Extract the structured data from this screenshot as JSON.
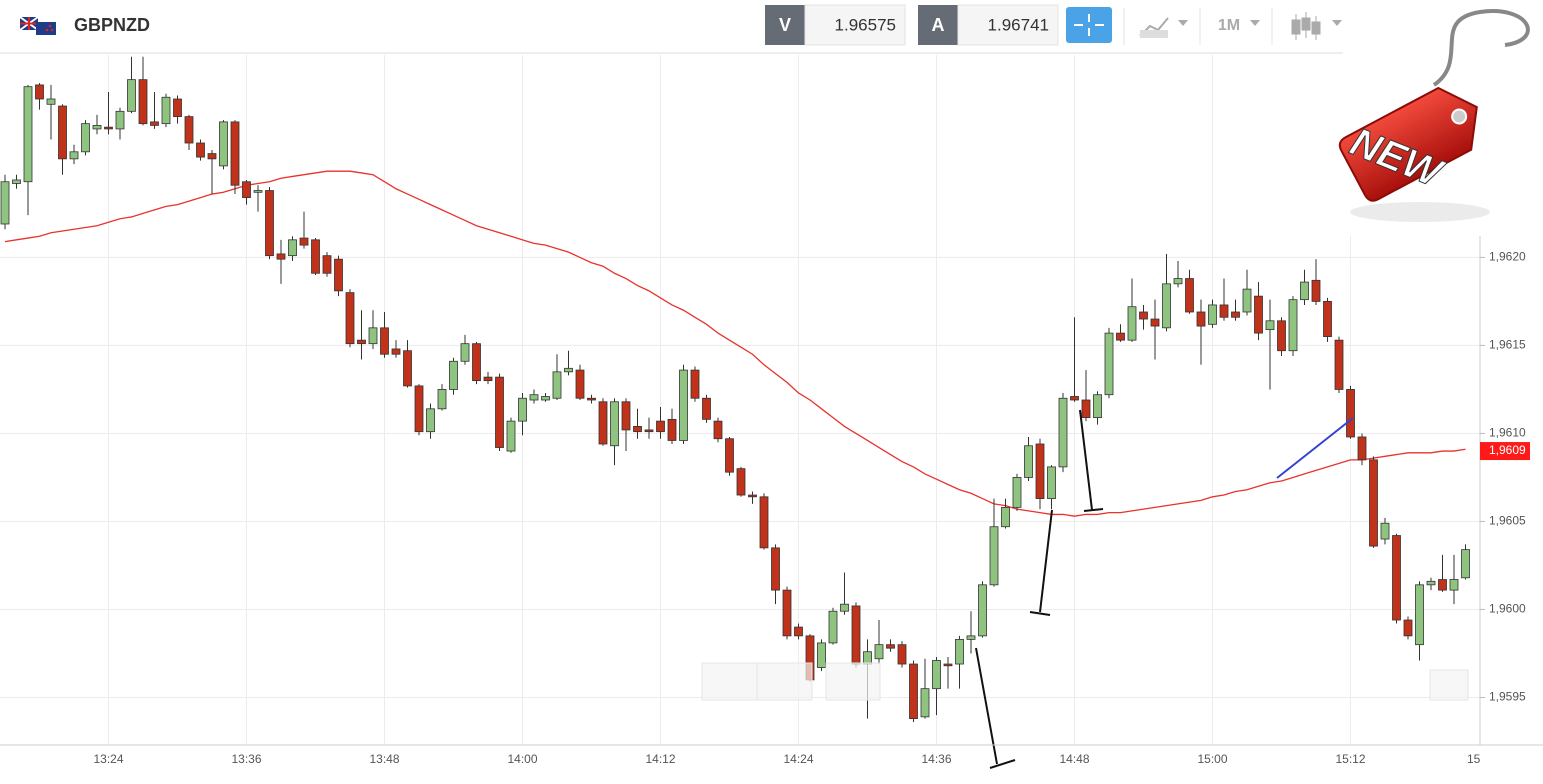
{
  "header": {
    "symbol": "GBPNZD",
    "bid_label": "V",
    "bid": "1.96575",
    "ask_label": "A",
    "ask": "1.96741",
    "timeframe": "1M"
  },
  "badge": "NEW",
  "chart_data": {
    "type": "candlestick",
    "categories": [
      null,
      null,
      null,
      null,
      null,
      null,
      null,
      null,
      null,
      "13:24",
      null,
      null,
      null,
      null,
      null,
      null,
      null,
      null,
      null,
      null,
      null,
      "13:36",
      null,
      null,
      null,
      null,
      null,
      null,
      null,
      null,
      null,
      null,
      null,
      "13:48",
      null,
      null,
      null,
      null,
      null,
      null,
      null,
      null,
      null,
      null,
      null,
      "14:00",
      null,
      null,
      null,
      null,
      null,
      null,
      null,
      null,
      null,
      null,
      null,
      "14:12",
      null,
      null,
      null,
      null,
      null,
      null,
      null,
      null,
      null,
      null,
      null,
      "14:24",
      null,
      null,
      null,
      null,
      null,
      null,
      null,
      null,
      null,
      null,
      null,
      "14:36",
      null,
      null,
      null,
      null,
      null,
      null,
      null,
      null,
      null,
      null,
      null,
      "14:48",
      null,
      null,
      null,
      null,
      null,
      null,
      null,
      null,
      null,
      null,
      null,
      "15:00",
      null,
      null,
      null,
      null,
      null,
      null,
      null,
      null,
      null,
      null,
      null,
      "15:12",
      null,
      null,
      null,
      null,
      null,
      null,
      null,
      null,
      null,
      null
    ],
    "open": [
      1.96219,
      1.96242,
      1.96243,
      1.96298,
      1.96287,
      1.96286,
      1.96256,
      1.9626,
      1.96273,
      1.96274,
      1.96273,
      1.96283,
      1.96301,
      1.96277,
      1.96276,
      1.9629,
      1.9628,
      1.96265,
      1.96259,
      1.96252,
      1.96277,
      1.96243,
      1.96237,
      1.96238,
      1.96202,
      1.96201,
      1.96211,
      1.9621,
      1.96201,
      1.96199,
      1.9618,
      1.96153,
      1.96151,
      1.9616,
      1.96148,
      1.96147,
      1.96127,
      1.96101,
      1.96114,
      1.96125,
      1.96141,
      1.96151,
      1.96132,
      1.96132,
      1.9609,
      1.96107,
      1.96119,
      1.96119,
      1.9612,
      1.96135,
      1.96136,
      1.9612,
      1.96118,
      1.96093,
      1.96118,
      1.96104,
      1.96102,
      1.96107,
      1.96108,
      1.96096,
      1.96136,
      1.9612,
      1.96107,
      1.96097,
      1.9608,
      1.96065,
      1.96064,
      1.96035,
      1.96011,
      1.9599,
      1.95985,
      1.95967,
      1.95981,
      1.95999,
      1.96002,
      1.95969,
      1.95972,
      1.9598,
      1.9598,
      1.95969,
      1.95939,
      1.95955,
      1.95969,
      1.95969,
      1.95983,
      1.95985,
      1.96014,
      1.96047,
      1.96058,
      1.96075,
      1.96094,
      1.96063,
      1.96081,
      1.96121,
      1.96119,
      1.96109,
      1.96122,
      1.96157,
      1.96153,
      1.96169,
      1.96165,
      1.9616,
      1.96185,
      1.96188,
      1.96169,
      1.96162,
      1.96173,
      1.96169,
      1.96169,
      1.96178,
      1.96159,
      1.96164,
      1.96147,
      1.96176,
      1.96187,
      1.96175,
      1.96153,
      1.96125,
      1.96098,
      1.96085,
      1.9604,
      1.96042,
      1.95994,
      1.9598,
      1.96014,
      1.96017,
      1.96011,
      1.96018
    ],
    "high": [
      1.96247,
      1.96247,
      1.96298,
      1.96299,
      1.96298,
      1.96287,
      1.96264,
      1.96278,
      1.96281,
      1.96294,
      1.96285,
      1.96314,
      1.96314,
      1.96294,
      1.96293,
      1.96292,
      1.96281,
      1.96267,
      1.96261,
      1.96278,
      1.96278,
      1.96244,
      1.96241,
      1.9624,
      1.9621,
      1.96212,
      1.96226,
      1.96211,
      1.96203,
      1.96201,
      1.96182,
      1.9617,
      1.9617,
      1.96169,
      1.96153,
      1.96153,
      1.96128,
      1.96117,
      1.96128,
      1.96143,
      1.96156,
      1.96152,
      1.96135,
      1.96134,
      1.96109,
      1.96123,
      1.96125,
      1.96123,
      1.96145,
      1.96147,
      1.96139,
      1.96122,
      1.9612,
      1.9612,
      1.9612,
      1.96114,
      1.96109,
      1.96115,
      1.96114,
      1.96139,
      1.96138,
      1.96122,
      1.96109,
      1.96098,
      1.96081,
      1.96067,
      1.96066,
      1.96037,
      1.96013,
      1.95992,
      1.95986,
      1.95983,
      1.96001,
      1.96021,
      1.96004,
      1.95983,
      1.95994,
      1.95983,
      1.95982,
      1.95971,
      1.95972,
      1.95973,
      1.95973,
      1.95985,
      1.95999,
      1.96016,
      1.96063,
      1.96063,
      1.96077,
      1.96098,
      1.96097,
      1.96082,
      1.96123,
      1.96166,
      1.96136,
      1.96124,
      1.9616,
      1.96162,
      1.96188,
      1.96173,
      1.96176,
      1.96202,
      1.96198,
      1.96193,
      1.96176,
      1.96176,
      1.96188,
      1.96176,
      1.96193,
      1.96186,
      1.96176,
      1.96166,
      1.96178,
      1.96193,
      1.96199,
      1.96177,
      1.96155,
      1.96127,
      1.961,
      1.96087,
      1.96052,
      1.96043,
      1.95996,
      1.96016,
      1.96018,
      1.96031,
      1.96031,
      1.96037
    ],
    "low": [
      1.96216,
      1.96239,
      1.96224,
      1.96284,
      1.96267,
      1.96247,
      1.96253,
      1.96258,
      1.9627,
      1.9627,
      1.96267,
      1.96282,
      1.96275,
      1.96273,
      1.96274,
      1.96276,
      1.96261,
      1.96255,
      1.96236,
      1.9625,
      1.96236,
      1.9623,
      1.96226,
      1.96199,
      1.96185,
      1.96198,
      1.96205,
      1.9619,
      1.96189,
      1.96178,
      1.96149,
      1.96142,
      1.96148,
      1.96143,
      1.96143,
      1.96126,
      1.96099,
      1.96097,
      1.96113,
      1.96122,
      1.96139,
      1.96128,
      1.96128,
      1.9609,
      1.96089,
      1.96099,
      1.96117,
      1.96118,
      1.96119,
      1.96133,
      1.96119,
      1.96117,
      1.96093,
      1.96082,
      1.9609,
      1.96097,
      1.96097,
      1.96097,
      1.96094,
      1.96094,
      1.96118,
      1.96106,
      1.96095,
      1.96076,
      1.96064,
      1.9606,
      1.96034,
      1.96003,
      1.95983,
      1.95983,
      1.95959,
      1.95965,
      1.9598,
      1.95997,
      1.95967,
      1.95938,
      1.95969,
      1.95976,
      1.95967,
      1.95936,
      1.95938,
      1.9594,
      1.95955,
      1.95955,
      1.95975,
      1.95984,
      1.96013,
      1.96046,
      1.96056,
      1.96073,
      1.96057,
      1.96057,
      1.96078,
      1.96118,
      1.96107,
      1.96105,
      1.9612,
      1.96152,
      1.96152,
      1.96159,
      1.96142,
      1.96158,
      1.96183,
      1.96168,
      1.96139,
      1.9616,
      1.96164,
      1.96164,
      1.96167,
      1.96153,
      1.96125,
      1.96144,
      1.96144,
      1.96173,
      1.96173,
      1.96152,
      1.96123,
      1.96097,
      1.96082,
      1.96035,
      1.96037,
      1.95992,
      1.95983,
      1.95971,
      1.96011,
      1.9601,
      1.96003,
      1.96017
    ],
    "close": [
      1.96243,
      1.96244,
      1.96297,
      1.9629,
      1.9629,
      1.96256,
      1.9626,
      1.96276,
      1.96275,
      1.96273,
      1.96283,
      1.96301,
      1.96276,
      1.96275,
      1.96291,
      1.9628,
      1.96265,
      1.96257,
      1.96256,
      1.96277,
      1.96241,
      1.96234,
      1.96238,
      1.96201,
      1.96199,
      1.9621,
      1.96207,
      1.96191,
      1.96191,
      1.96181,
      1.96151,
      1.96151,
      1.9616,
      1.96145,
      1.96145,
      1.96127,
      1.96101,
      1.96114,
      1.96125,
      1.96141,
      1.96151,
      1.9613,
      1.9613,
      1.96092,
      1.96107,
      1.9612,
      1.96122,
      1.96121,
      1.96135,
      1.96137,
      1.9612,
      1.96119,
      1.96094,
      1.96118,
      1.96102,
      1.96101,
      1.96101,
      1.96101,
      1.96096,
      1.96136,
      1.9612,
      1.96108,
      1.96097,
      1.96078,
      1.96065,
      1.96064,
      1.96035,
      1.96011,
      1.95985,
      1.95985,
      1.9596,
      1.95981,
      1.95999,
      1.96003,
      1.95969,
      1.95976,
      1.9598,
      1.95978,
      1.95969,
      1.95938,
      1.95955,
      1.95971,
      1.95968,
      1.95983,
      1.95985,
      1.96014,
      1.96047,
      1.96058,
      1.96075,
      1.96093,
      1.96063,
      1.96081,
      1.9612,
      1.96119,
      1.96109,
      1.96122,
      1.96157,
      1.96153,
      1.96172,
      1.96165,
      1.96161,
      1.96185,
      1.96188,
      1.96169,
      1.96161,
      1.96173,
      1.96166,
      1.96166,
      1.96182,
      1.96157,
      1.96164,
      1.96147,
      1.96176,
      1.96186,
      1.96175,
      1.96155,
      1.96125,
      1.96098,
      1.96085,
      1.96036,
      1.96049,
      1.95994,
      1.95985,
      1.96014,
      1.96016,
      1.96011,
      1.96017,
      1.96034
    ],
    "up_color": "#8fc480",
    "down_color": "#c1321b",
    "moving_average": {
      "color": "#e8322b",
      "values": [
        1.96209,
        1.9621,
        1.96211,
        1.96212,
        1.96214,
        1.96215,
        1.96216,
        1.96217,
        1.96218,
        1.9622,
        1.96222,
        1.96223,
        1.96225,
        1.96227,
        1.96229,
        1.9623,
        1.96232,
        1.96234,
        1.96236,
        1.96237,
        1.96239,
        1.96241,
        1.96242,
        1.96243,
        1.96245,
        1.96246,
        1.96247,
        1.96248,
        1.96249,
        1.96249,
        1.96249,
        1.96248,
        1.96247,
        1.96243,
        1.96239,
        1.96236,
        1.96233,
        1.9623,
        1.96227,
        1.96224,
        1.96221,
        1.96218,
        1.96216,
        1.96214,
        1.96212,
        1.9621,
        1.96208,
        1.96207,
        1.96205,
        1.96203,
        1.962,
        1.96197,
        1.96195,
        1.96191,
        1.96188,
        1.96184,
        1.96181,
        1.96177,
        1.96173,
        1.9617,
        1.96166,
        1.96162,
        1.96157,
        1.96153,
        1.96149,
        1.96145,
        1.96139,
        1.96134,
        1.96129,
        1.96123,
        1.96119,
        1.96114,
        1.96109,
        1.96104,
        1.961,
        1.96096,
        1.96092,
        1.96088,
        1.96084,
        1.96081,
        1.96077,
        1.96074,
        1.96071,
        1.96068,
        1.96066,
        1.96063,
        1.9606,
        1.96059,
        1.96057,
        1.96056,
        1.96055,
        1.96054,
        1.96054,
        1.96053,
        1.96054,
        1.96054,
        1.96055,
        1.96055,
        1.96056,
        1.96057,
        1.96058,
        1.96059,
        1.9606,
        1.96061,
        1.96062,
        1.96064,
        1.96065,
        1.96067,
        1.96068,
        1.9607,
        1.96072,
        1.96073,
        1.96075,
        1.96077,
        1.96079,
        1.96081,
        1.96083,
        1.96085,
        1.96085,
        1.96086,
        1.96087,
        1.96088,
        1.96089,
        1.96089,
        1.96089,
        1.9609,
        1.9609,
        1.96091
      ]
    },
    "ylim": [
      1.95923,
      1.96315
    ],
    "yticks": [
      {
        "value": 1.9595,
        "label": "1,9595"
      },
      {
        "value": 1.96,
        "label": "1,9600"
      },
      {
        "value": 1.9605,
        "label": "1,9605"
      },
      {
        "value": 1.961,
        "label": "1,9610"
      },
      {
        "value": 1.9615,
        "label": "1,9615"
      },
      {
        "value": 1.962,
        "label": "1,9620"
      }
    ],
    "grid": true,
    "last_price": {
      "value": 1.9609,
      "label": "1,9609",
      "color": "#ff1a1a"
    },
    "clipped_tick_label": "15"
  }
}
